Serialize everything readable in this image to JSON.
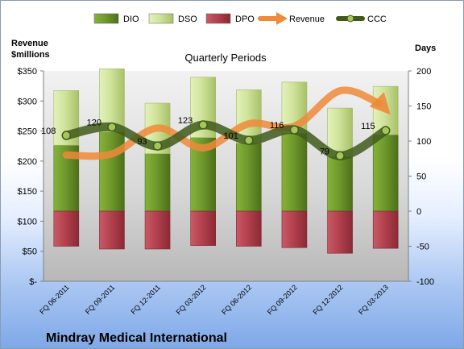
{
  "chart_data": {
    "type": "bar",
    "title": "Quarterly Periods",
    "footer_title": "Mindray Medical International",
    "left_axis_label": [
      "Revenue",
      "$millions"
    ],
    "right_axis_label": "Days",
    "categories": [
      "FQ 06-2011",
      "FQ 09-2011",
      "FQ 12-2011",
      "FQ 03-2012",
      "FQ 06-2012",
      "FQ 09-2012",
      "FQ 12-2012",
      "FQ 03-2013"
    ],
    "left_axis": {
      "ylim": [
        0,
        350
      ],
      "ticks": [
        "$-",
        "$50",
        "$100",
        "$150",
        "$200",
        "$250",
        "$300",
        "$350"
      ]
    },
    "right_axis": {
      "ylim": [
        -100,
        200
      ],
      "ticks": [
        "-100",
        "-50",
        "0",
        "50",
        "100",
        "150",
        "200"
      ]
    },
    "legend": [
      "DIO",
      "DSO",
      "DPO",
      "Revenue",
      "CCC"
    ],
    "grid": false,
    "series": [
      {
        "name": "DIO",
        "axis": "right",
        "values": [
          94,
          113,
          82,
          105,
          97,
          111,
          78,
          109
        ],
        "color": "#6f9a2c"
      },
      {
        "name": "DSO",
        "axis": "right",
        "values": [
          78,
          90,
          72,
          86,
          76,
          73,
          69,
          69
        ],
        "color": "#cfe39a"
      },
      {
        "name": "DPO",
        "axis": "right",
        "values": [
          -50,
          -54,
          -54,
          -49,
          -50,
          -52,
          -60,
          -53
        ],
        "color": "#b3414e"
      },
      {
        "name": "Revenue",
        "axis": "left",
        "values": [
          210,
          212,
          255,
          222,
          262,
          258,
          317,
          288
        ],
        "color": "#ee8a3a"
      },
      {
        "name": "CCC",
        "axis": "right",
        "values": [
          108,
          120,
          93,
          123,
          101,
          116,
          79,
          115
        ],
        "labels": [
          "108",
          "120",
          "93",
          "123",
          "101",
          "116",
          "79",
          "115"
        ],
        "color": "#4f6b26"
      }
    ]
  }
}
